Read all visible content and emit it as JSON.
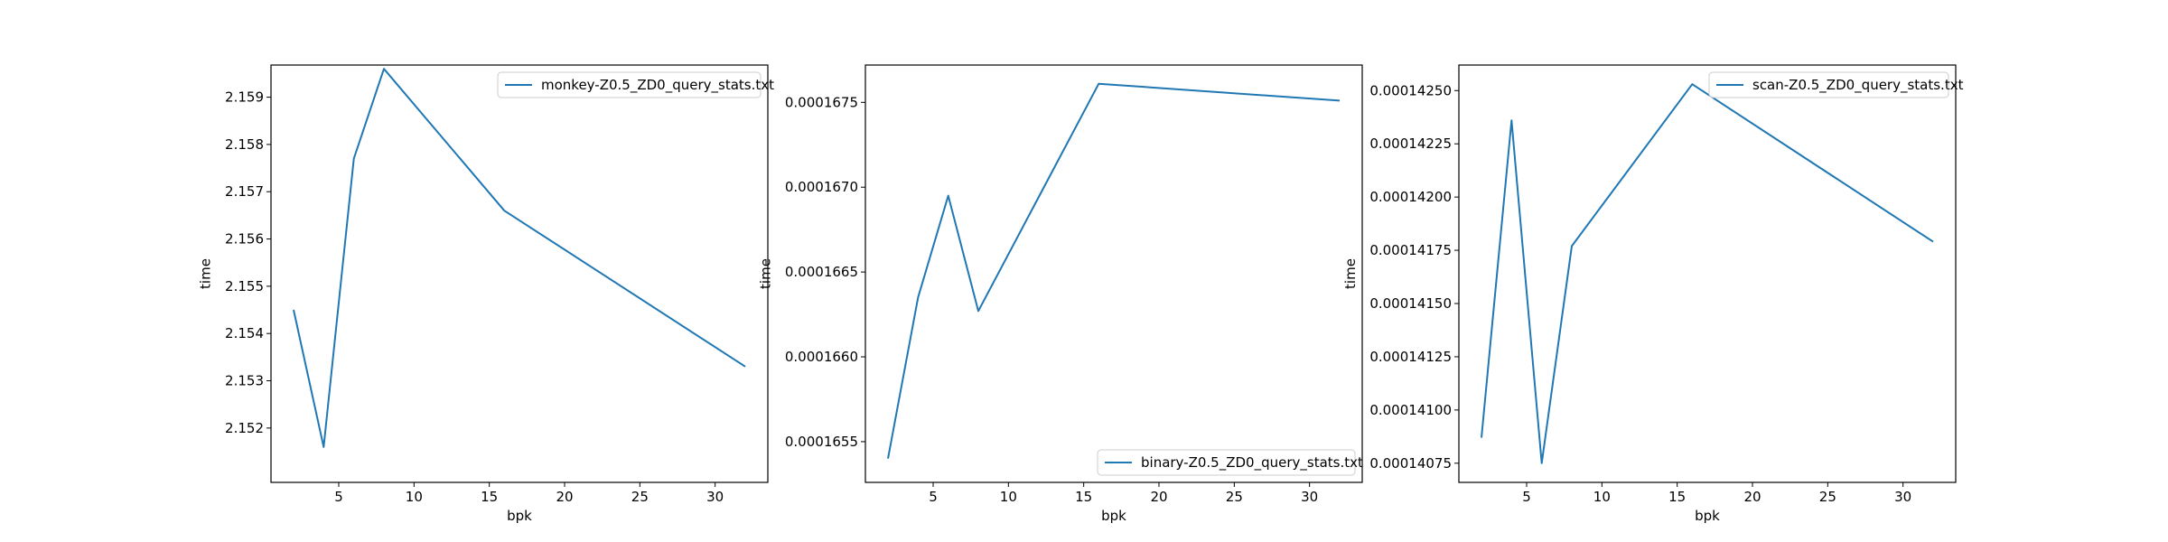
{
  "colors": {
    "line": "#1f77b4",
    "axes": "#000000",
    "legend_edge": "#cccccc",
    "background": "#ffffff"
  },
  "chart_data": [
    {
      "type": "line",
      "xlabel": "bpk",
      "ylabel": "time",
      "xlim": [
        0.5,
        33.5
      ],
      "ylim": [
        2.15085,
        2.15968
      ],
      "xticks": [
        5,
        10,
        15,
        20,
        25,
        30
      ],
      "xtick_labels": [
        "5",
        "10",
        "15",
        "20",
        "25",
        "30"
      ],
      "yticks": [
        2.152,
        2.153,
        2.154,
        2.155,
        2.156,
        2.157,
        2.158,
        2.159
      ],
      "ytick_labels": [
        "2.152",
        "2.153",
        "2.154",
        "2.155",
        "2.156",
        "2.157",
        "2.158",
        "2.159"
      ],
      "legend_position": "upper right",
      "series": [
        {
          "name": "monkey-Z0.5_ZD0_query_stats.txt",
          "x": [
            2,
            4,
            6,
            8,
            16,
            32
          ],
          "y": [
            2.1545,
            2.1516,
            2.1577,
            2.1596,
            2.1566,
            2.1533
          ]
        }
      ]
    },
    {
      "type": "line",
      "xlabel": "bpk",
      "ylabel": "time",
      "xlim": [
        0.5,
        33.5
      ],
      "ylim": [
        0.00016526,
        0.00016772
      ],
      "xticks": [
        5,
        10,
        15,
        20,
        25,
        30
      ],
      "xtick_labels": [
        "5",
        "10",
        "15",
        "20",
        "25",
        "30"
      ],
      "yticks": [
        0.0001655,
        0.000166,
        0.0001665,
        0.000167,
        0.0001675
      ],
      "ytick_labels": [
        "0.0001655",
        "0.0001660",
        "0.0001665",
        "0.0001670",
        "0.0001675"
      ],
      "legend_position": "lower right",
      "series": [
        {
          "name": "binary-Z0.5_ZD0_query_stats.txt",
          "x": [
            2,
            4,
            6,
            8,
            16,
            32
          ],
          "y": [
            0.0001654,
            0.00016635,
            0.00016695,
            0.00016627,
            0.00016761,
            0.00016751
          ]
        }
      ]
    },
    {
      "type": "line",
      "xlabel": "bpk",
      "ylabel": "time",
      "xlim": [
        0.5,
        33.5
      ],
      "ylim": [
        0.00014066,
        0.00014262
      ],
      "xticks": [
        5,
        10,
        15,
        20,
        25,
        30
      ],
      "xtick_labels": [
        "5",
        "10",
        "15",
        "20",
        "25",
        "30"
      ],
      "yticks": [
        0.00014075,
        0.000141,
        0.00014125,
        0.0001415,
        0.00014175,
        0.000142,
        0.00014225,
        0.0001425
      ],
      "ytick_labels": [
        "0.00014075",
        "0.00014100",
        "0.00014125",
        "0.00014150",
        "0.00014175",
        "0.00014200",
        "0.00014225",
        "0.00014250"
      ],
      "legend_position": "upper right",
      "series": [
        {
          "name": "scan-Z0.5_ZD0_query_stats.txt",
          "x": [
            2,
            4,
            6,
            8,
            16,
            32
          ],
          "y": [
            0.00014087,
            0.00014236,
            0.00014075,
            0.00014177,
            0.00014253,
            0.00014179
          ]
        }
      ]
    }
  ]
}
